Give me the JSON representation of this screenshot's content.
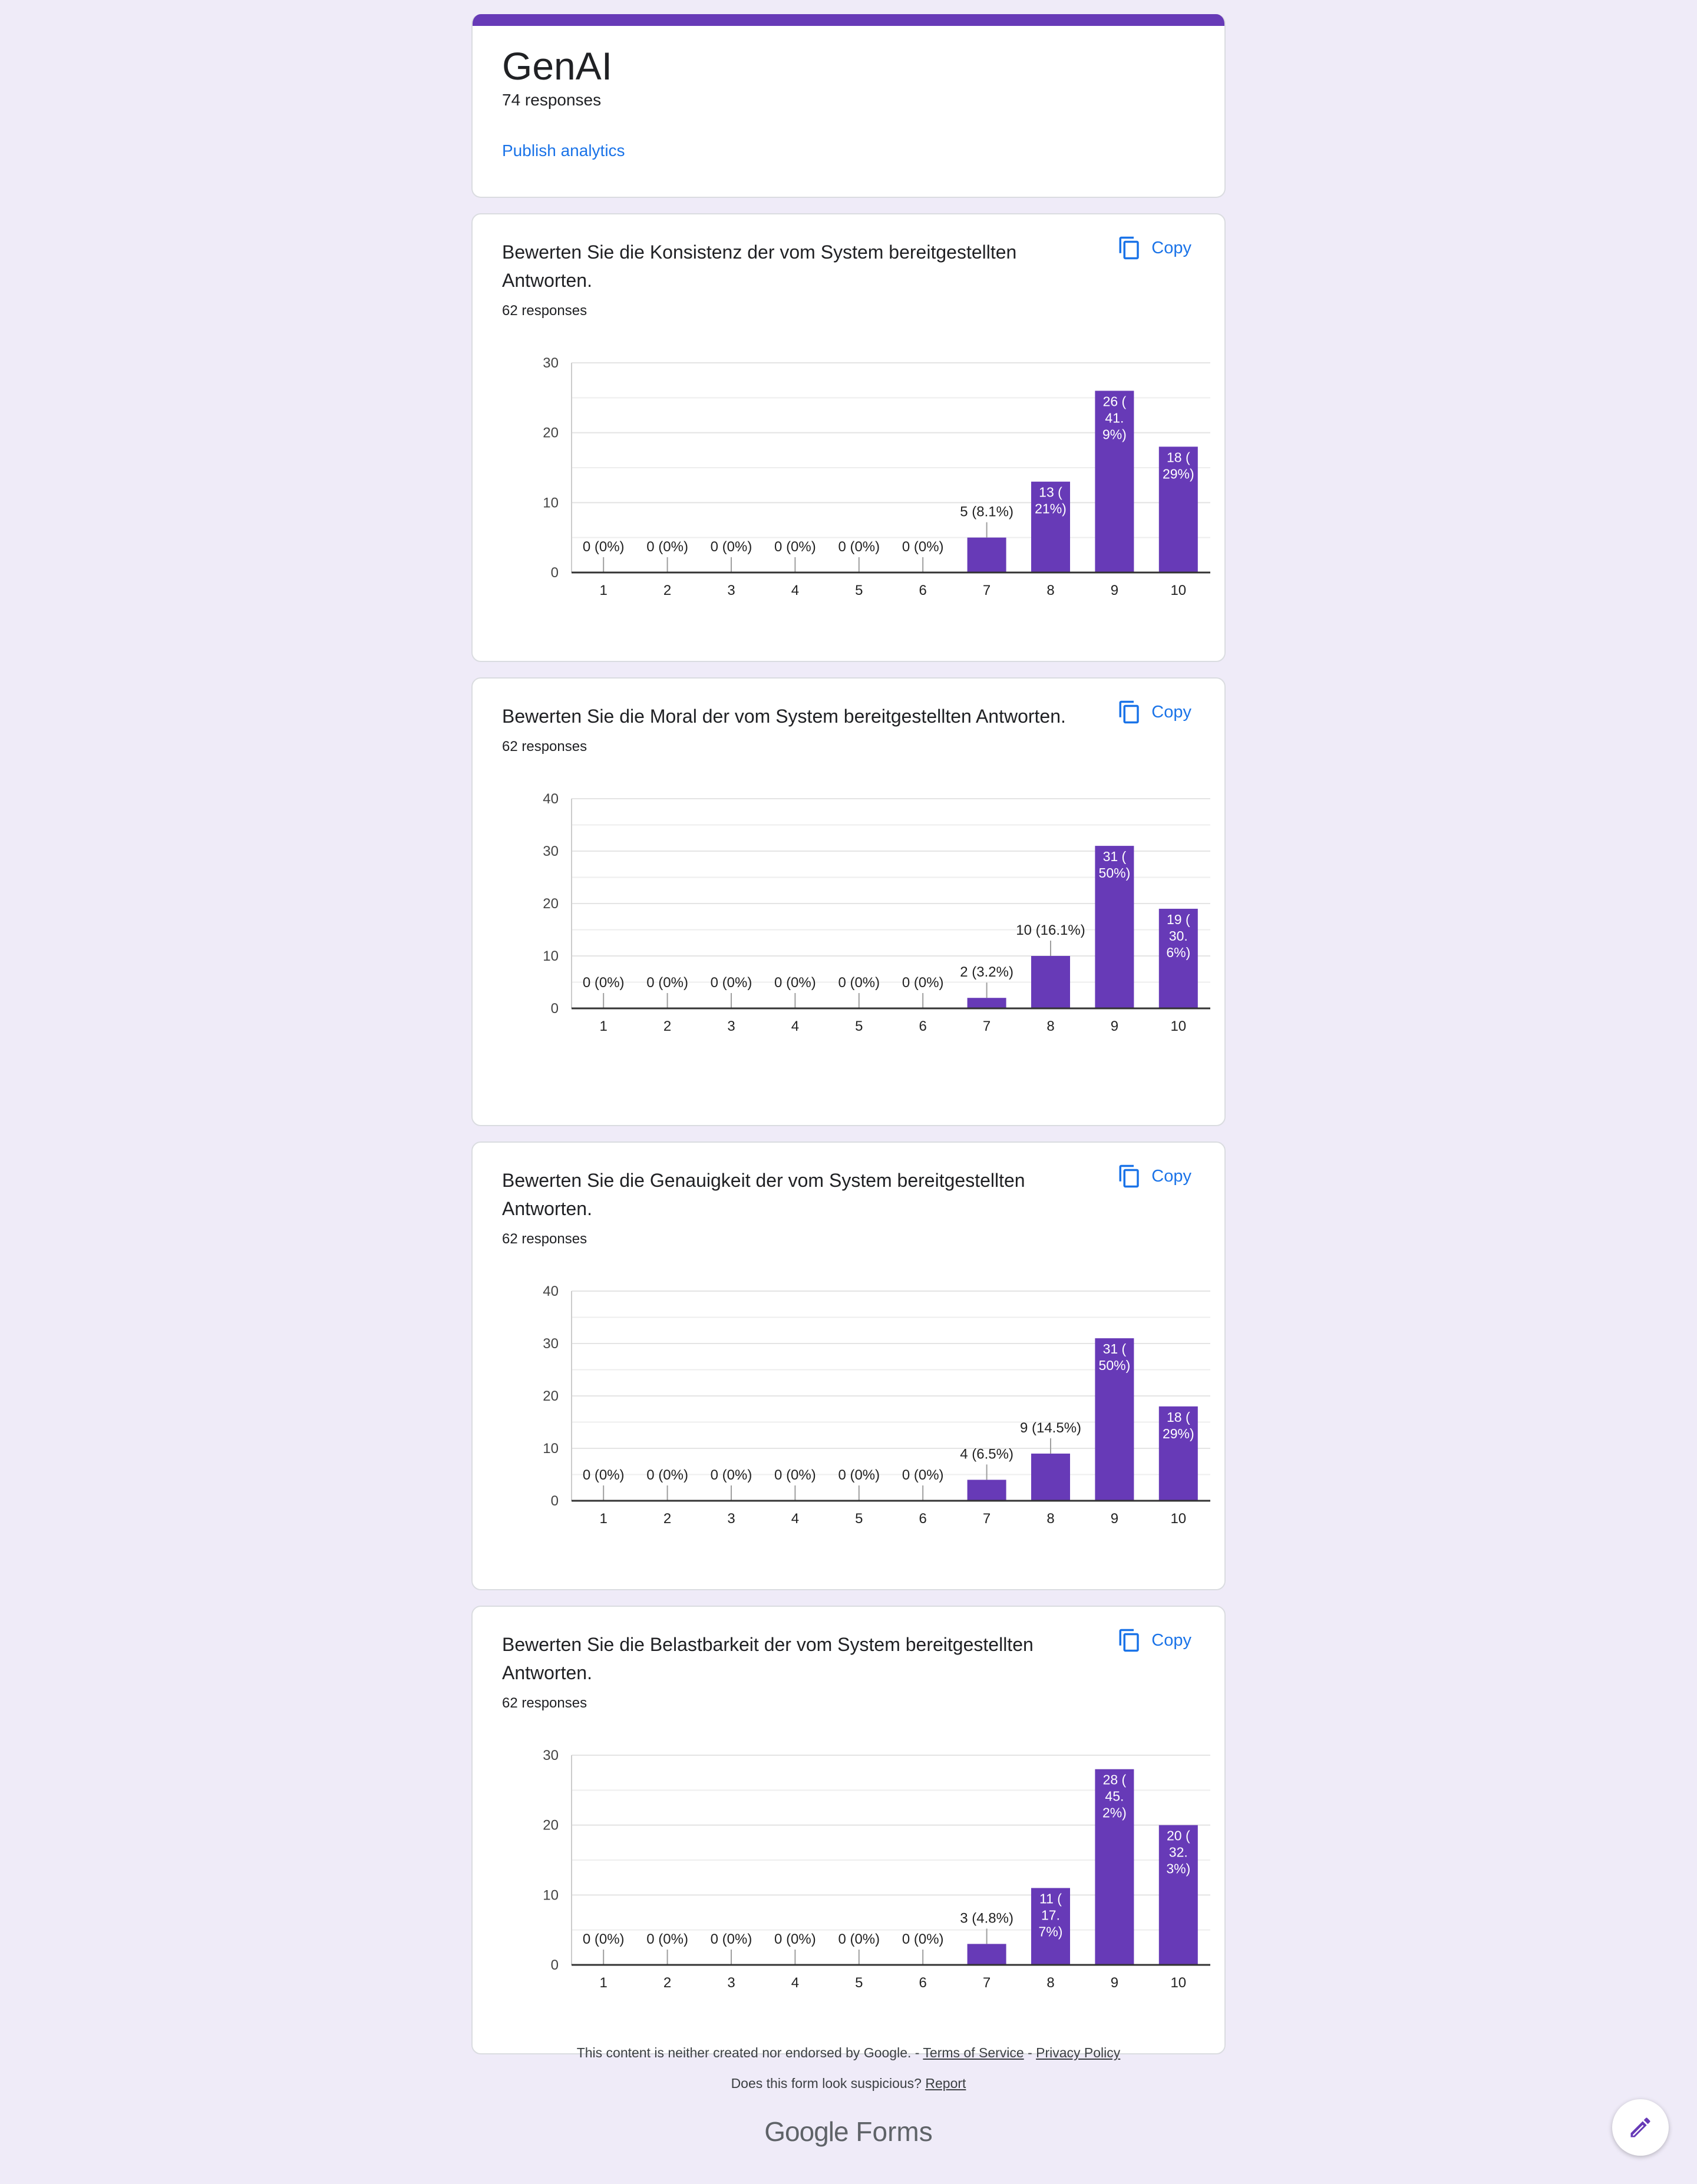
{
  "form": {
    "title": "GenAI",
    "responses": "74 responses",
    "publish_label": "Publish analytics"
  },
  "copy_label": "Copy",
  "colors": {
    "bar": "#673ab7",
    "link": "#1a73e8",
    "accent": "#673ab7"
  },
  "questions": [
    {
      "title": "Bewerten Sie die Konsistenz der vom System bereitgestellten Antworten.",
      "responses": "62 responses"
    },
    {
      "title": "Bewerten Sie die Moral der vom System bereitgestellten Antworten.",
      "responses": "62 responses"
    },
    {
      "title": "Bewerten Sie die Genauigkeit der vom System bereitgestellten Antworten.",
      "responses": "62 responses"
    },
    {
      "title": "Bewerten Sie die Belastbarkeit der vom System bereitgestellten Antworten.",
      "responses": "62 responses"
    }
  ],
  "chart_data": [
    {
      "type": "bar",
      "categories": [
        "1",
        "2",
        "3",
        "4",
        "5",
        "6",
        "7",
        "8",
        "9",
        "10"
      ],
      "values": [
        0,
        0,
        0,
        0,
        0,
        0,
        5,
        13,
        26,
        18
      ],
      "labels": [
        "0 (0%)",
        "0 (0%)",
        "0 (0%)",
        "0 (0%)",
        "0 (0%)",
        "0 (0%)",
        "5 (8.1%)",
        "13 (\n21%)",
        "26 (\n41.\n9%)",
        "18 (\n29%)"
      ],
      "yticks": [
        0,
        10,
        20,
        30
      ],
      "ylim": [
        0,
        30
      ]
    },
    {
      "type": "bar",
      "categories": [
        "1",
        "2",
        "3",
        "4",
        "5",
        "6",
        "7",
        "8",
        "9",
        "10"
      ],
      "values": [
        0,
        0,
        0,
        0,
        0,
        0,
        2,
        10,
        31,
        19
      ],
      "labels": [
        "0 (0%)",
        "0 (0%)",
        "0 (0%)",
        "0 (0%)",
        "0 (0%)",
        "0 (0%)",
        "2 (3.2%)",
        "10 (16.1%)",
        "31 (\n50%)",
        "19 (\n30.\n6%)"
      ],
      "yticks": [
        0,
        10,
        20,
        30,
        40
      ],
      "ylim": [
        0,
        40
      ]
    },
    {
      "type": "bar",
      "categories": [
        "1",
        "2",
        "3",
        "4",
        "5",
        "6",
        "7",
        "8",
        "9",
        "10"
      ],
      "values": [
        0,
        0,
        0,
        0,
        0,
        0,
        4,
        9,
        31,
        18
      ],
      "labels": [
        "0 (0%)",
        "0 (0%)",
        "0 (0%)",
        "0 (0%)",
        "0 (0%)",
        "0 (0%)",
        "4 (6.5%)",
        "9 (14.5%)",
        "31 (\n50%)",
        "18 (\n29%)"
      ],
      "yticks": [
        0,
        10,
        20,
        30,
        40
      ],
      "ylim": [
        0,
        40
      ]
    },
    {
      "type": "bar",
      "categories": [
        "1",
        "2",
        "3",
        "4",
        "5",
        "6",
        "7",
        "8",
        "9",
        "10"
      ],
      "values": [
        0,
        0,
        0,
        0,
        0,
        0,
        3,
        11,
        28,
        20
      ],
      "labels": [
        "0 (0%)",
        "0 (0%)",
        "0 (0%)",
        "0 (0%)",
        "0 (0%)",
        "0 (0%)",
        "3 (4.8%)",
        "11 (\n17.\n7%)",
        "28 (\n45.\n2%)",
        "20 (\n32.\n3%)"
      ],
      "yticks": [
        0,
        10,
        20,
        30
      ],
      "ylim": [
        0,
        30
      ]
    }
  ],
  "footer": {
    "disclaimer": "This content is neither created nor endorsed by Google. -",
    "terms": "Terms of Service",
    "separator": "-",
    "privacy": "Privacy Policy",
    "suspicious": "Does this form look suspicious?",
    "report": "Report"
  },
  "brand": {
    "google": "Google",
    "forms": "Forms"
  }
}
